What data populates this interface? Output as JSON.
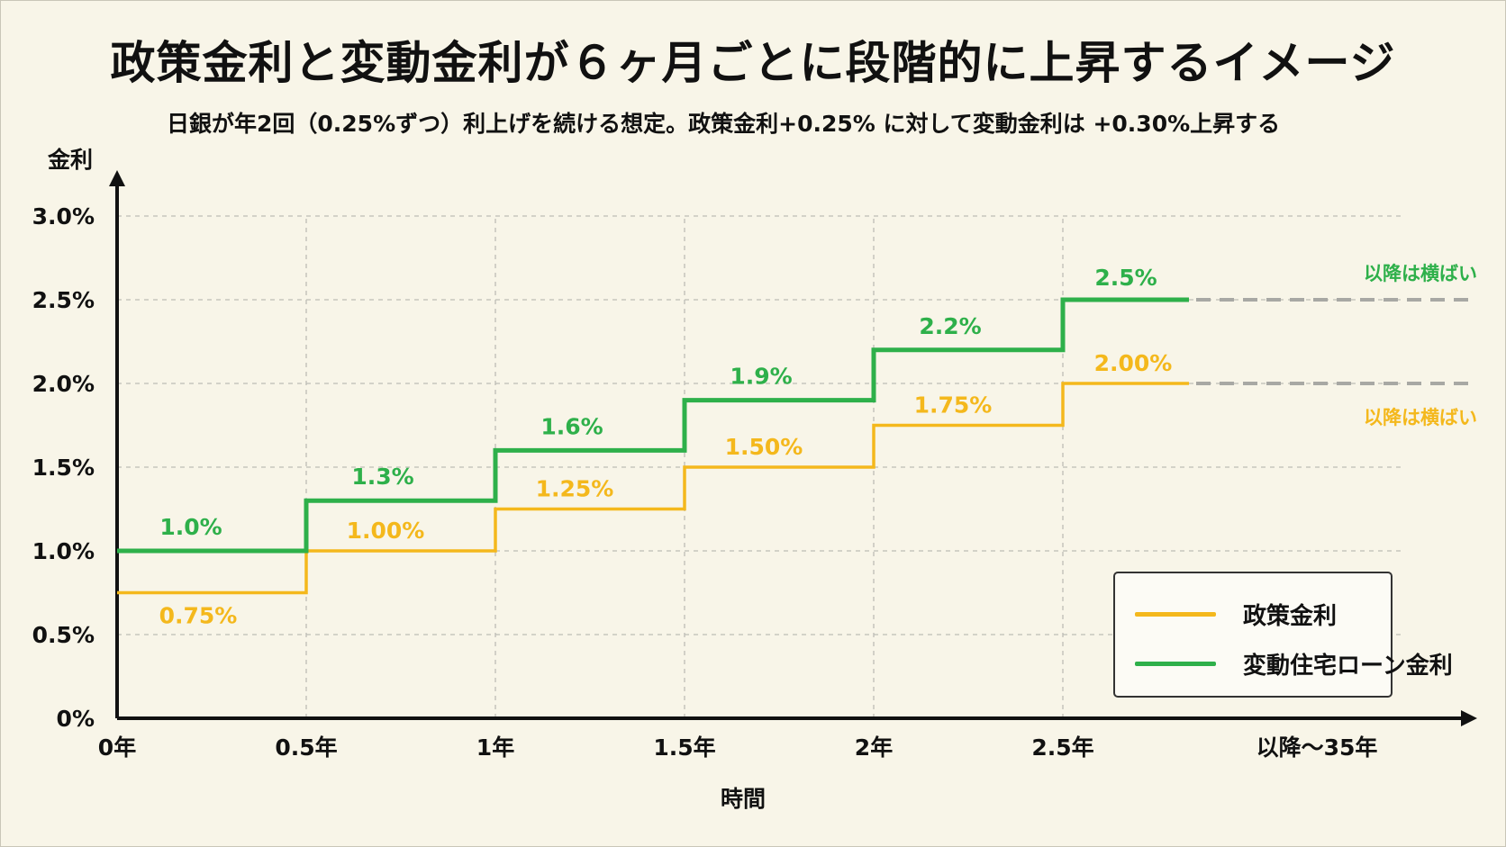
{
  "title": "政策金利と変動金利が６ヶ月ごとに段階的に上昇するイメージ",
  "subtitle": "日銀が年2回（0.25%ずつ）利上げを続ける想定。政策金利+0.25% に対して変動金利は +0.30%上昇する",
  "colors": {
    "policy": "#f4b81c",
    "variable": "#2eb04a",
    "grid": "#bdbdb5",
    "dash": "#a8a8a4",
    "axis": "#111111"
  },
  "legend": {
    "items": [
      {
        "label": "政策金利",
        "color": "#f4b81c"
      },
      {
        "label": "変動住宅ローン金利",
        "color": "#2eb04a"
      }
    ]
  },
  "chart_data": {
    "type": "line",
    "step": true,
    "xlabel": "時間",
    "ylabel": "金利",
    "ylim": [
      0,
      3.0
    ],
    "yticks": [
      "0%",
      "0.5%",
      "1.0%",
      "1.5%",
      "2.0%",
      "2.5%",
      "3.0%"
    ],
    "xtick_labels": [
      "0年",
      "0.5年",
      "1年",
      "1.5年",
      "2年",
      "2.5年",
      "以降～35年"
    ],
    "x": [
      0,
      0.5,
      1,
      1.5,
      2,
      2.5
    ],
    "grid": true,
    "legend_position": "bottom-right",
    "series": [
      {
        "name": "政策金利",
        "values": [
          0.75,
          1.0,
          1.25,
          1.5,
          1.75,
          2.0
        ],
        "labels": [
          "0.75%",
          "1.00%",
          "1.25%",
          "1.50%",
          "1.75%",
          "2.00%"
        ],
        "note": "以降は横ばい"
      },
      {
        "name": "変動住宅ローン金利",
        "values": [
          1.0,
          1.3,
          1.6,
          1.9,
          2.2,
          2.5
        ],
        "labels": [
          "1.0%",
          "1.3%",
          "1.6%",
          "1.9%",
          "2.2%",
          "2.5%"
        ],
        "note": "以降は横ばい"
      }
    ]
  }
}
